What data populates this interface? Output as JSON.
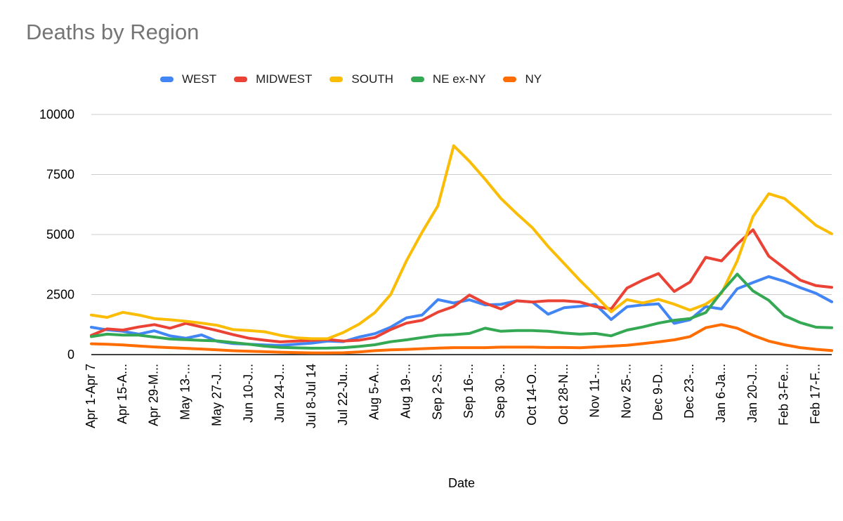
{
  "header": {
    "title": "Deaths by Region"
  },
  "x_axis_title": "Date",
  "chart_data": {
    "type": "line",
    "title": "Deaths by Region",
    "xlabel": "Date",
    "ylabel": "",
    "ylim": [
      0,
      10000
    ],
    "y_ticks": [
      0,
      2500,
      5000,
      7500,
      10000
    ],
    "grid": true,
    "legend_position": "top",
    "n_points": 48,
    "label_every": 2,
    "x_tick_labels": [
      "Apr 1-Apr 7",
      "Apr 15-A...",
      "Apr 29-M...",
      "May 13-...",
      "May 27-J...",
      "Jun 10-J...",
      "Jun 24-J...",
      "Jul 8-Jul 14",
      "Jul 22-Ju...",
      "Aug 5-A...",
      "Aug 19-...",
      "Sep 2-S...",
      "Sep 16-...",
      "Sep 30-...",
      "Oct 14-O...",
      "Oct 28-N...",
      "Nov 11-...",
      "Nov 25-...",
      "Dec 9-D...",
      "Dec 23-...",
      "Jan 6-Ja...",
      "Jan 20-J...",
      "Feb 3-Fe...",
      "Feb 17-F..."
    ],
    "series": [
      {
        "name": "WEST",
        "color": "#4285F4",
        "values": [
          1140,
          1030,
          970,
          850,
          990,
          780,
          680,
          820,
          550,
          460,
          430,
          400,
          380,
          430,
          480,
          560,
          540,
          730,
          870,
          1140,
          1530,
          1650,
          2290,
          2150,
          2280,
          2070,
          2090,
          2240,
          2190,
          1680,
          1950,
          2010,
          2090,
          1460,
          1990,
          2070,
          2110,
          1300,
          1450,
          2000,
          1900,
          2740,
          3000,
          3250,
          3050,
          2790,
          2550,
          2200
        ]
      },
      {
        "name": "MIDWEST",
        "color": "#EA4335",
        "values": [
          800,
          1070,
          1020,
          1150,
          1250,
          1100,
          1300,
          1150,
          1000,
          830,
          680,
          600,
          530,
          560,
          590,
          630,
          560,
          600,
          710,
          1040,
          1310,
          1430,
          1770,
          2000,
          2480,
          2140,
          1900,
          2240,
          2190,
          2240,
          2240,
          2190,
          2000,
          1900,
          2770,
          3100,
          3375,
          2630,
          3020,
          4050,
          3900,
          4600,
          5200,
          4100,
          3600,
          3100,
          2870,
          2800
        ]
      },
      {
        "name": "SOUTH",
        "color": "#FBBC04",
        "values": [
          1650,
          1550,
          1760,
          1650,
          1500,
          1450,
          1390,
          1310,
          1220,
          1040,
          1000,
          950,
          800,
          700,
          660,
          660,
          920,
          1270,
          1750,
          2500,
          3900,
          5100,
          6200,
          8700,
          8050,
          7300,
          6500,
          5870,
          5280,
          4500,
          3800,
          3100,
          2450,
          1780,
          2290,
          2150,
          2300,
          2100,
          1850,
          2100,
          2550,
          3900,
          5750,
          6700,
          6500,
          5950,
          5380,
          5030
        ]
      },
      {
        "name": "NE ex-NY",
        "color": "#34A853",
        "values": [
          750,
          850,
          810,
          810,
          730,
          650,
          620,
          590,
          570,
          500,
          430,
          350,
          300,
          280,
          265,
          270,
          290,
          340,
          410,
          535,
          615,
          710,
          800,
          830,
          880,
          1100,
          970,
          1000,
          1000,
          970,
          900,
          850,
          880,
          780,
          1020,
          1150,
          1310,
          1430,
          1500,
          1750,
          2600,
          3350,
          2650,
          2260,
          1620,
          1330,
          1140,
          1120
        ]
      },
      {
        "name": "NY",
        "color": "#FF6D01",
        "values": [
          450,
          430,
          400,
          360,
          320,
          290,
          260,
          230,
          200,
          160,
          140,
          120,
          100,
          85,
          70,
          70,
          75,
          110,
          165,
          195,
          215,
          245,
          270,
          290,
          290,
          290,
          310,
          310,
          310,
          295,
          295,
          285,
          320,
          350,
          390,
          455,
          530,
          615,
          750,
          1120,
          1250,
          1100,
          800,
          560,
          410,
          290,
          220,
          170
        ]
      }
    ],
    "colors": {
      "grid": "#cccccc",
      "baseline": "#424242",
      "axis_text": "#000000"
    }
  }
}
